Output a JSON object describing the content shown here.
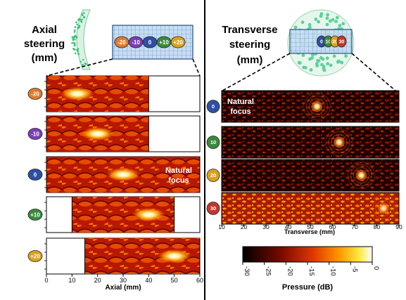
{
  "left_panel": {
    "title_line1": "Axial",
    "title_line2": "steering",
    "title_line3": "(mm)",
    "grid_markers": [
      "-20",
      "-10",
      "0",
      "+10",
      "+20"
    ],
    "rows": [
      {
        "badge": "-20",
        "color": "#e07a2c",
        "field_start_mm": 0,
        "field_end_mm": 40,
        "focus_mm": 12
      },
      {
        "badge": "-10",
        "color": "#7a3fb4",
        "field_start_mm": 0,
        "field_end_mm": 40,
        "focus_mm": 20
      },
      {
        "badge": "0",
        "color": "#2e4fa6",
        "field_start_mm": 0,
        "field_end_mm": 60,
        "focus_mm": 30
      },
      {
        "badge": "+10",
        "color": "#3a8a3c",
        "field_start_mm": 10,
        "field_end_mm": 50,
        "focus_mm": 40
      },
      {
        "badge": "+20",
        "color": "#d9a21c",
        "field_start_mm": 15,
        "field_end_mm": 60,
        "focus_mm": 50
      }
    ],
    "annotation_line1": "Natural",
    "annotation_line2": "focus",
    "x_ticks": [
      "0",
      "10",
      "20",
      "30",
      "40",
      "50",
      "60"
    ],
    "x_label": "Axial (mm)"
  },
  "right_panel": {
    "title_line1": "Transverse",
    "title_line2": "steering",
    "title_line3": "(mm)",
    "grid_markers": [
      "0",
      "10",
      "20",
      "30"
    ],
    "rows": [
      {
        "badge": "0",
        "color": "#2e4fa6",
        "focus_mm": 53
      },
      {
        "badge": "10",
        "color": "#3a8a3c",
        "focus_mm": 63
      },
      {
        "badge": "20",
        "color": "#d9a21c",
        "focus_mm": 73
      },
      {
        "badge": "30",
        "color": "#c0392b",
        "focus_mm": 83
      }
    ],
    "annotation_line1": "Natural",
    "annotation_line2": "focus",
    "x_ticks": [
      "10",
      "20",
      "30",
      "40",
      "50",
      "60",
      "70",
      "80",
      "90"
    ],
    "x_label": "Transverse (mm)"
  },
  "colorbar": {
    "ticks": [
      "-30",
      "-25",
      "-20",
      "-15",
      "-10",
      "-5",
      "0"
    ],
    "label": "Pressure (dB)"
  }
}
